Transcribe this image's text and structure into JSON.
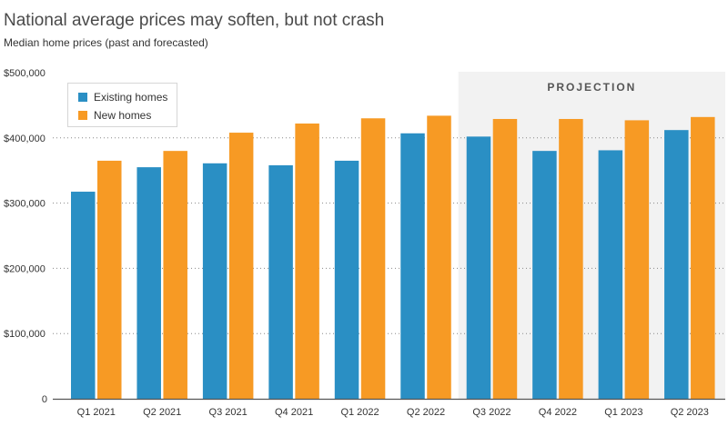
{
  "chart_data": {
    "type": "bar",
    "title": "National average prices may soften, but not crash",
    "subtitle": "Median home prices (past and forecasted)",
    "xlabel": "",
    "ylabel": "",
    "ylim": [
      0,
      500000
    ],
    "yticks": [
      0,
      100000,
      200000,
      300000,
      400000,
      500000
    ],
    "ytick_labels": [
      "0",
      "$100,000",
      "$200,000",
      "$300,000",
      "$400,000",
      "$500,000"
    ],
    "grid": true,
    "legend_position": "top-left",
    "categories": [
      "Q1 2021",
      "Q2 2021",
      "Q3 2021",
      "Q4 2021",
      "Q1 2022",
      "Q2 2022",
      "Q3 2022",
      "Q4 2022",
      "Q1 2023",
      "Q2 2023"
    ],
    "series": [
      {
        "name": "Existing homes",
        "color": "#2a8fc4",
        "values": [
          317500,
          355000,
          361000,
          358000,
          365000,
          407000,
          402000,
          380000,
          381000,
          412000
        ]
      },
      {
        "name": "New homes",
        "color": "#f79a24",
        "values": [
          365000,
          380000,
          408000,
          422000,
          430000,
          434000,
          429000,
          429000,
          427000,
          432000
        ]
      }
    ],
    "annotations": [
      {
        "label": "PROJECTION",
        "from_category": "Q3 2022",
        "to_category": "Q2 2023",
        "color": "#f2f2f2"
      }
    ]
  }
}
